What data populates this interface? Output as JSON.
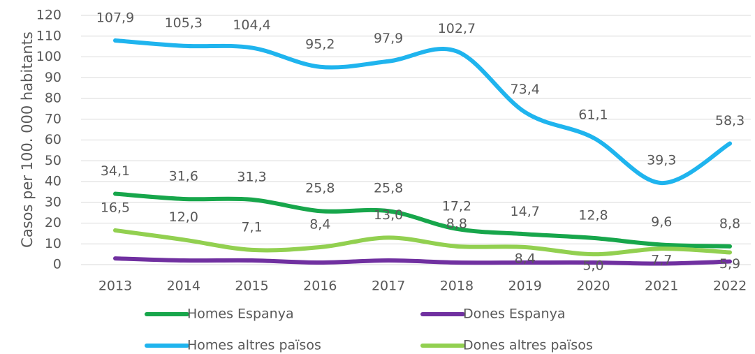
{
  "chart_data": {
    "type": "line",
    "y_label": "Casos per 100. 000 habitants",
    "categories": [
      "2013",
      "2014",
      "2015",
      "2016",
      "2017",
      "2018",
      "2019",
      "2020",
      "2021",
      "2022"
    ],
    "series": [
      {
        "name": "Homes Espanya",
        "color": "#17a64b",
        "values": [
          34.1,
          31.6,
          31.3,
          25.8,
          25.8,
          17.2,
          14.7,
          12.8,
          9.6,
          8.8
        ],
        "value_labels": [
          "34,1",
          "31,6",
          "31,3",
          "25,8",
          "25,8",
          "17,2",
          "14,7",
          "12,8",
          "9,6",
          "8,8"
        ]
      },
      {
        "name": "Dones Espanya",
        "color": "#7030a0",
        "values": [
          3,
          2,
          2,
          1,
          2,
          1,
          1,
          1,
          0.5,
          1.5
        ]
      },
      {
        "name": "Homes altres països",
        "color": "#1fb4ee",
        "values": [
          107.9,
          105.3,
          104.4,
          95.2,
          97.9,
          102.7,
          73.4,
          61.1,
          39.3,
          58.3
        ],
        "value_labels": [
          "107,9",
          "105,3",
          "104,4",
          "95,2",
          "97,9",
          "102,7",
          "73,4",
          "61,1",
          "39,3",
          "58,3"
        ]
      },
      {
        "name": "Dones altres països",
        "color": "#92d050",
        "values": [
          16.5,
          12.0,
          7.1,
          8.4,
          13.0,
          8.8,
          8.4,
          5.0,
          7.7,
          5.9
        ],
        "value_labels": [
          "16,5",
          "12,0",
          "7,1",
          "8,4",
          "13,0",
          "8,8",
          "8,4",
          "5,0",
          "7,7",
          "5,9"
        ]
      }
    ],
    "ylim": [
      0,
      120
    ],
    "yticks": [
      0,
      10,
      20,
      30,
      40,
      50,
      60,
      70,
      80,
      90,
      100,
      110,
      120
    ],
    "grid": true
  }
}
